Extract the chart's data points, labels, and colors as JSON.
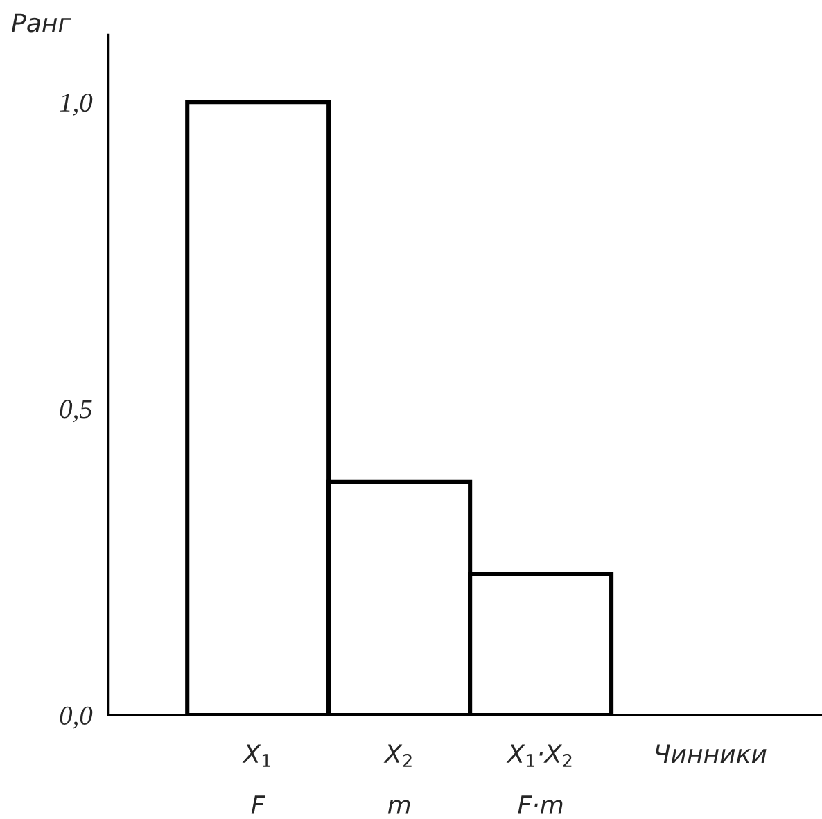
{
  "chart_data": {
    "type": "bar",
    "xlabel": "Чинники",
    "ylabel": "Ранг",
    "categories": [
      "X$_{1}$\nF",
      "X$_{2}$\nm",
      "X$_{1}$·X$_{2}$\nF·m"
    ],
    "values": [
      1.0,
      0.38,
      0.23
    ],
    "color": "#ffffff",
    "ylim": [
      0,
      1.11
    ],
    "yticks": [
      {
        "value": 0,
        "label": "0,0"
      },
      {
        "value": 0.5,
        "label": "0,5"
      },
      {
        "value": 1.0,
        "label": "1,0"
      }
    ],
    "grid": false,
    "legend": false
  }
}
